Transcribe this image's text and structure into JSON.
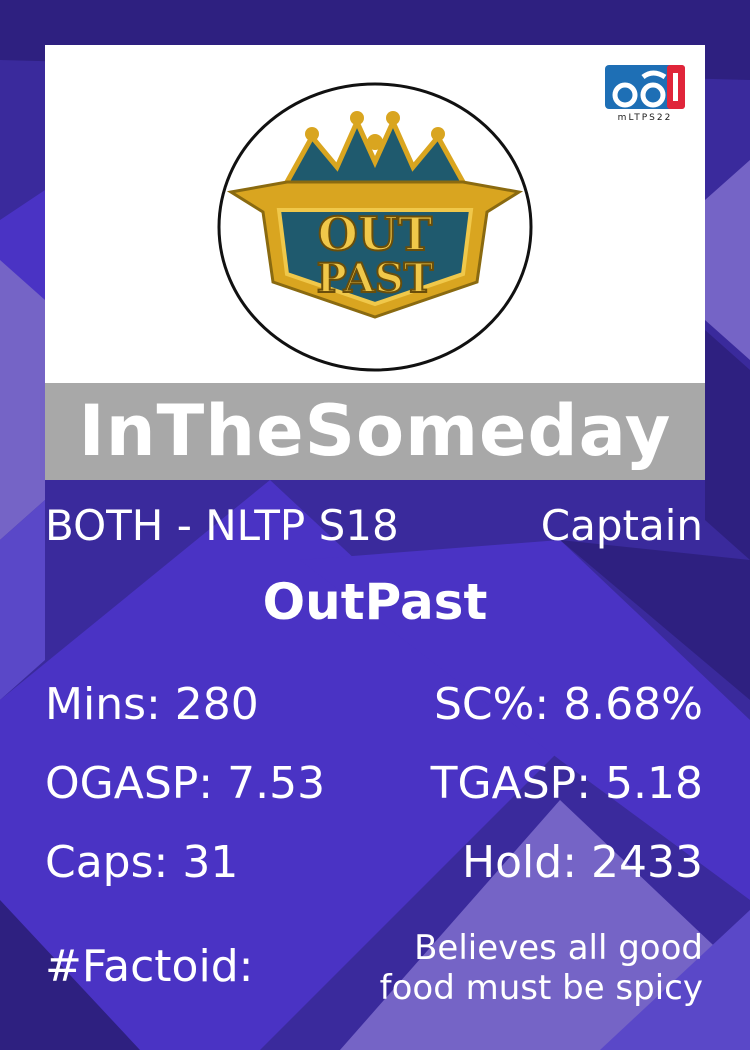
{
  "player": {
    "name": "InTheSomeday",
    "league": "BOTH - NLTP S18",
    "role": "Captain",
    "team": "OutPast"
  },
  "brand": {
    "label": "mLTPS22",
    "logo_icon": "mltp-logo-icon",
    "colors": {
      "blue": "#1e6fb5",
      "red": "#e0253a"
    }
  },
  "team_logo": {
    "icon": "outpast-crown-shield-icon",
    "line1": "OUT",
    "line2": "PAST",
    "colors": {
      "gold": "#d9a520",
      "teal": "#1f5a6e"
    }
  },
  "stats": {
    "mins": "Mins: 280",
    "sc": "SC%: 8.68%",
    "ogasp": "OGASP: 7.53",
    "tgasp": "TGASP: 5.18",
    "caps": "Caps: 31",
    "hold": "Hold: 2433"
  },
  "factoid": {
    "label": "#Factoid:",
    "text": "Believes all good food must be spicy"
  },
  "colors": {
    "bg_dark": "#2e2080",
    "bg_mid": "#4a33c4",
    "bg_light": "#7564c6",
    "name_bar": "#a8a8a8"
  }
}
